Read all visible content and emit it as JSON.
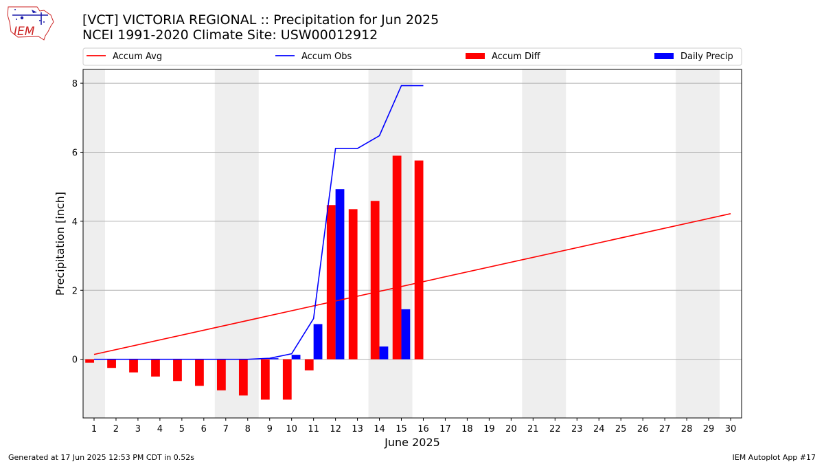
{
  "logo": {
    "text": "IEM"
  },
  "title": "[VCT] VICTORIA REGIONAL :: Precipitation for Jun 2025",
  "subtitle": "NCEI 1991-2020 Climate Site: USW00012912",
  "footer": {
    "left": "Generated at 17 Jun 2025 12:53 PM CDT in 0.52s",
    "right": "IEM Autoplot App #17"
  },
  "colors": {
    "accum_avg": "#ff0000",
    "accum_obs": "#0000ff",
    "accum_diff": "#ff0000",
    "daily_precip": "#0000ff",
    "weekend_shade": "#eeeeee",
    "grid": "#b0b0b0"
  },
  "chart_data": {
    "type": "bar",
    "xlabel": "June 2025",
    "ylabel": "Precipitation [inch]",
    "xlim": [
      0.5,
      30.5
    ],
    "ylim": [
      -1.7,
      8.4
    ],
    "yticks": [
      0,
      2,
      4,
      6,
      8
    ],
    "xtick_labels": [
      "1",
      "2",
      "3",
      "4",
      "5",
      "6",
      "7",
      "8",
      "9",
      "10",
      "11",
      "12",
      "13",
      "14",
      "15",
      "16",
      "17",
      "18",
      "19",
      "20",
      "21",
      "22",
      "23",
      "24",
      "25",
      "26",
      "27",
      "28",
      "29",
      "30"
    ],
    "grid": "horizontal",
    "legend_placement": "top, above plot",
    "weekend_days": [
      1,
      7,
      8,
      14,
      15,
      21,
      22,
      28,
      29
    ],
    "series": [
      {
        "name": "Accum Avg",
        "kind": "line",
        "x": [
          1,
          30
        ],
        "values": [
          0.14,
          4.22
        ]
      },
      {
        "name": "Accum Obs",
        "kind": "line",
        "x": [
          1,
          2,
          3,
          4,
          5,
          6,
          7,
          8,
          9,
          10,
          11,
          12,
          13,
          14,
          15,
          16
        ],
        "values": [
          0.0,
          0.0,
          0.0,
          0.0,
          0.0,
          0.0,
          0.0,
          0.0,
          0.03,
          0.16,
          1.18,
          6.11,
          6.11,
          6.48,
          7.93,
          7.93
        ]
      },
      {
        "name": "Accum Diff",
        "kind": "bar",
        "x": [
          1,
          2,
          3,
          4,
          5,
          6,
          7,
          8,
          9,
          10,
          11,
          12,
          13,
          14,
          15,
          16
        ],
        "values": [
          -0.1,
          -0.25,
          -0.38,
          -0.5,
          -0.63,
          -0.77,
          -0.9,
          -1.05,
          -1.17,
          -1.17,
          -0.32,
          4.47,
          4.35,
          4.59,
          5.9,
          5.76
        ]
      },
      {
        "name": "Daily Precip",
        "kind": "bar",
        "x": [
          9,
          10,
          11,
          12,
          14,
          15
        ],
        "values": [
          0.03,
          0.13,
          1.02,
          4.93,
          0.37,
          1.45
        ]
      }
    ]
  }
}
